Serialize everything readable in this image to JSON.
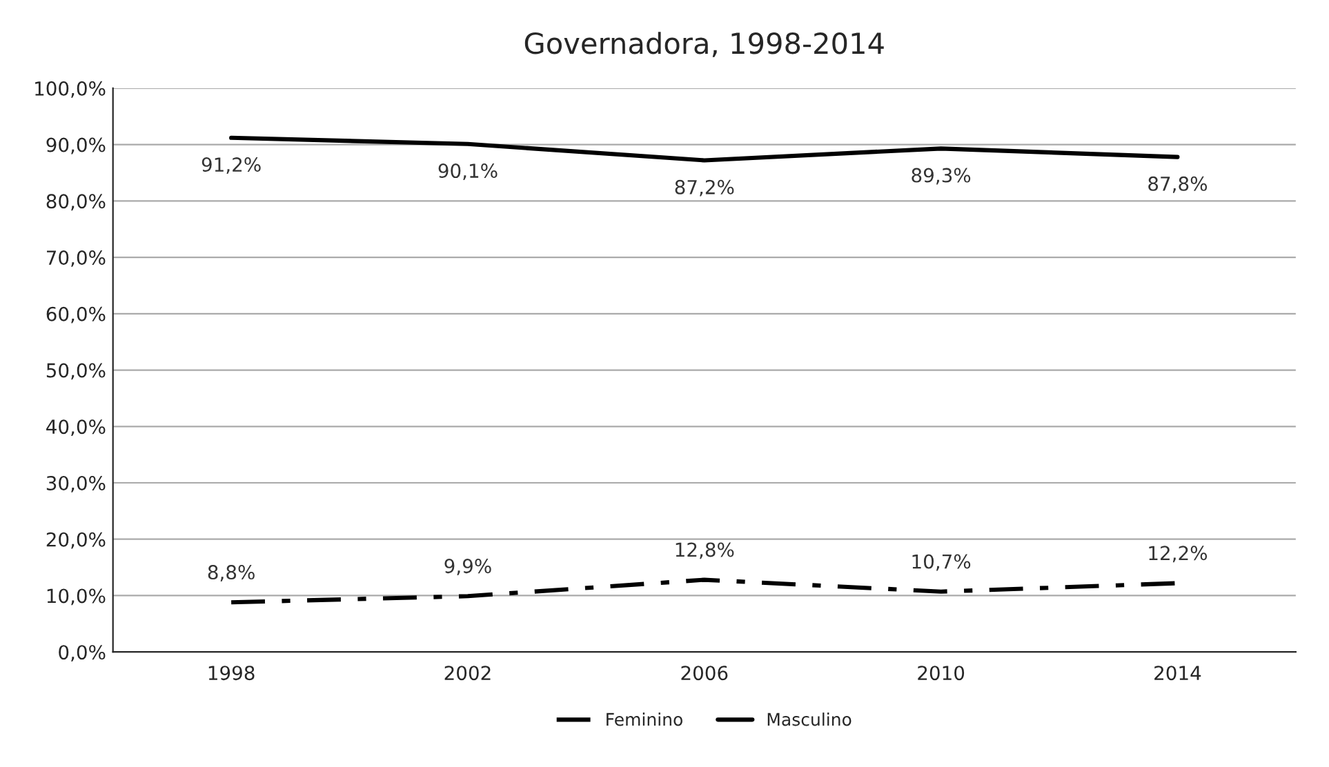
{
  "chart_data": {
    "type": "line",
    "title": "Governadora, 1998-2014",
    "categories": [
      "1998",
      "2002",
      "2006",
      "2010",
      "2014"
    ],
    "series": [
      {
        "name": "Feminino",
        "color": "#000000",
        "line_style": "dashdot",
        "values": [
          8.8,
          9.9,
          12.8,
          10.7,
          12.2
        ],
        "value_labels": [
          "8,8%",
          "9,9%",
          "12,8%",
          "10,7%",
          "12,2%"
        ]
      },
      {
        "name": "Masculino",
        "color": "#000000",
        "line_style": "solid",
        "values": [
          91.2,
          90.1,
          87.2,
          89.3,
          87.8
        ],
        "value_labels": [
          "91,2%",
          "90,1%",
          "87,2%",
          "89,3%",
          "87,8%"
        ]
      }
    ],
    "ylim": [
      0,
      100
    ],
    "yticks": [
      {
        "value": 0,
        "label": "0,0%"
      },
      {
        "value": 10,
        "label": "10,0%"
      },
      {
        "value": 20,
        "label": "20,0%"
      },
      {
        "value": 30,
        "label": "30,0%"
      },
      {
        "value": 40,
        "label": "40,0%"
      },
      {
        "value": 50,
        "label": "50,0%"
      },
      {
        "value": 60,
        "label": "60,0%"
      },
      {
        "value": 70,
        "label": "70,0%"
      },
      {
        "value": 80,
        "label": "80,0%"
      },
      {
        "value": 90,
        "label": "90,0%"
      },
      {
        "value": 100,
        "label": "100,0%"
      }
    ],
    "grid": "y",
    "legend": "bottom",
    "marker": "none"
  }
}
